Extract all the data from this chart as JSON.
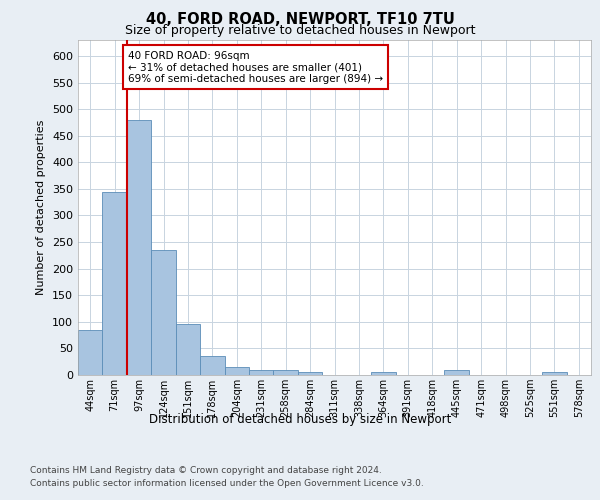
{
  "title1": "40, FORD ROAD, NEWPORT, TF10 7TU",
  "title2": "Size of property relative to detached houses in Newport",
  "xlabel": "Distribution of detached houses by size in Newport",
  "ylabel": "Number of detached properties",
  "categories": [
    "44sqm",
    "71sqm",
    "97sqm",
    "124sqm",
    "151sqm",
    "178sqm",
    "204sqm",
    "231sqm",
    "258sqm",
    "284sqm",
    "311sqm",
    "338sqm",
    "364sqm",
    "391sqm",
    "418sqm",
    "445sqm",
    "471sqm",
    "498sqm",
    "525sqm",
    "551sqm",
    "578sqm"
  ],
  "values": [
    85,
    345,
    480,
    235,
    95,
    35,
    15,
    10,
    10,
    5,
    0,
    0,
    5,
    0,
    0,
    10,
    0,
    0,
    0,
    5,
    0
  ],
  "bar_color": "#a8c4e0",
  "bar_edge_color": "#5b8db8",
  "highlight_color": "#cc0000",
  "annotation_text": "40 FORD ROAD: 96sqm\n← 31% of detached houses are smaller (401)\n69% of semi-detached houses are larger (894) →",
  "annotation_box_color": "#cc0000",
  "ylim": [
    0,
    630
  ],
  "yticks": [
    0,
    50,
    100,
    150,
    200,
    250,
    300,
    350,
    400,
    450,
    500,
    550,
    600
  ],
  "footer1": "Contains HM Land Registry data © Crown copyright and database right 2024.",
  "footer2": "Contains public sector information licensed under the Open Government Licence v3.0.",
  "background_color": "#e8eef4",
  "plot_bg_color": "#ffffff",
  "grid_color": "#c8d4e0"
}
